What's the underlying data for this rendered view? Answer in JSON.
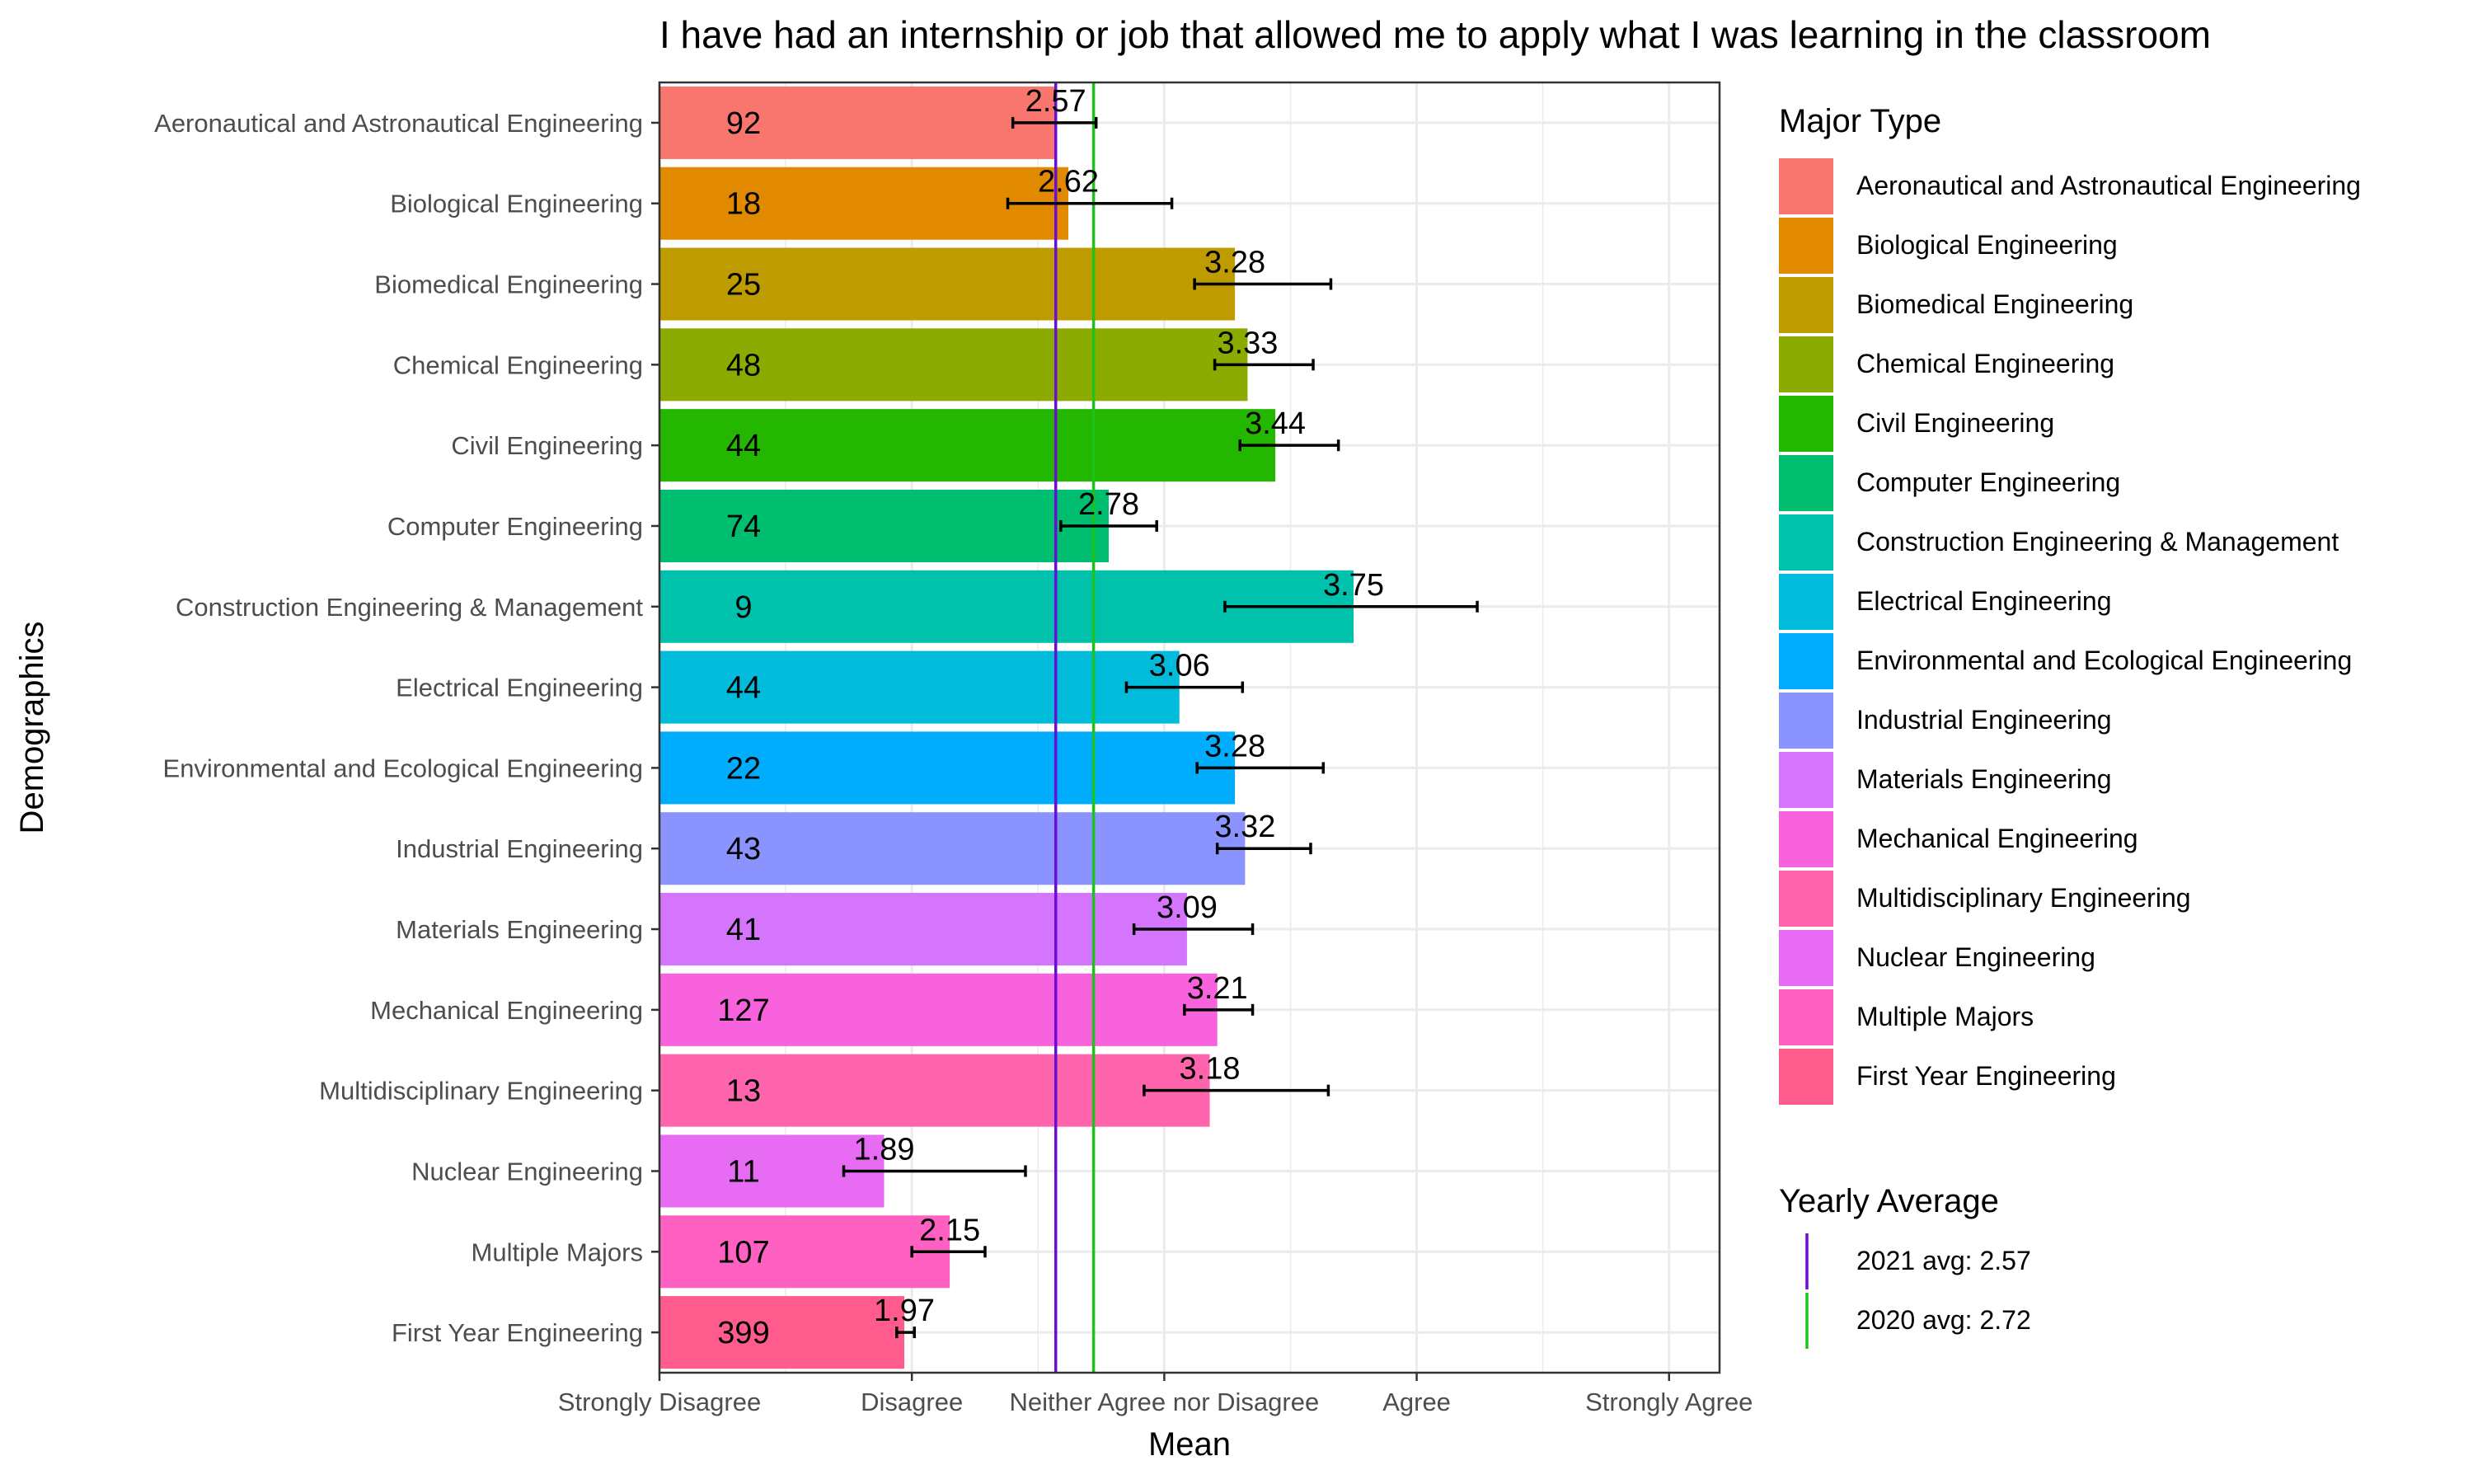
{
  "chart_data": {
    "type": "bar",
    "orientation": "horizontal",
    "title": "I have had an internship or job that allowed me to apply what I was learning in the classroom",
    "xlabel": "Mean",
    "ylabel": "Demographics",
    "xlim": [
      1,
      5.2
    ],
    "x_ticks": [
      {
        "value": 1,
        "label": "Strongly Disagree"
      },
      {
        "value": 2,
        "label": "Disagree"
      },
      {
        "value": 3,
        "label": "Neither Agree nor Disagree"
      },
      {
        "value": 4,
        "label": "Agree"
      },
      {
        "value": 5,
        "label": "Strongly Agree"
      }
    ],
    "grid": true,
    "categories": [
      "Aeronautical and Astronautical Engineering",
      "Biological Engineering",
      "Biomedical Engineering",
      "Chemical Engineering",
      "Civil Engineering",
      "Computer Engineering",
      "Construction Engineering & Management",
      "Electrical Engineering",
      "Environmental and Ecological Engineering",
      "Industrial Engineering",
      "Materials Engineering",
      "Mechanical Engineering",
      "Multidisciplinary Engineering",
      "Nuclear Engineering",
      "Multiple Majors",
      "First Year Engineering"
    ],
    "values": [
      2.57,
      2.62,
      3.28,
      3.33,
      3.44,
      2.78,
      3.75,
      3.06,
      3.28,
      3.32,
      3.09,
      3.21,
      3.18,
      1.89,
      2.15,
      1.97
    ],
    "value_labels": [
      "2.57",
      "2.62",
      "3.28",
      "3.33",
      "3.44",
      "2.78",
      "3.75",
      "3.06",
      "3.28",
      "3.32",
      "3.09",
      "3.21",
      "3.18",
      "1.89",
      "2.15",
      "1.97"
    ],
    "counts": [
      "92",
      "18",
      "25",
      "48",
      "44",
      "74",
      "9",
      "44",
      "22",
      "43",
      "41",
      "127",
      "13",
      "11",
      "107",
      "399"
    ],
    "error_low": [
      2.4,
      2.38,
      3.12,
      3.2,
      3.3,
      2.59,
      3.24,
      2.85,
      3.13,
      3.21,
      2.88,
      3.08,
      2.92,
      1.73,
      2.0,
      1.94
    ],
    "error_high": [
      2.73,
      3.03,
      3.66,
      3.59,
      3.69,
      2.97,
      4.24,
      3.31,
      3.63,
      3.58,
      3.35,
      3.35,
      3.65,
      2.45,
      2.29,
      2.01
    ],
    "colors": [
      "#F8766D",
      "#E18A00",
      "#BE9C00",
      "#8CAB00",
      "#24B700",
      "#00BE70",
      "#00C1AB",
      "#00BBDA",
      "#00ACFC",
      "#8B93FF",
      "#D575FE",
      "#F962DD",
      "#FF65AC",
      "#E76BF3",
      "#FF61C3",
      "#FF5C8D"
    ],
    "reference_lines": [
      {
        "label": "2021 avg: 2.57",
        "value": 2.57,
        "color": "#6A0DD6"
      },
      {
        "label": "2020 avg: 2.72",
        "value": 2.72,
        "color": "#1BC31B"
      }
    ],
    "legend": {
      "placement": "right",
      "fill_title": "Major Type",
      "line_title": "Yearly Average"
    }
  }
}
